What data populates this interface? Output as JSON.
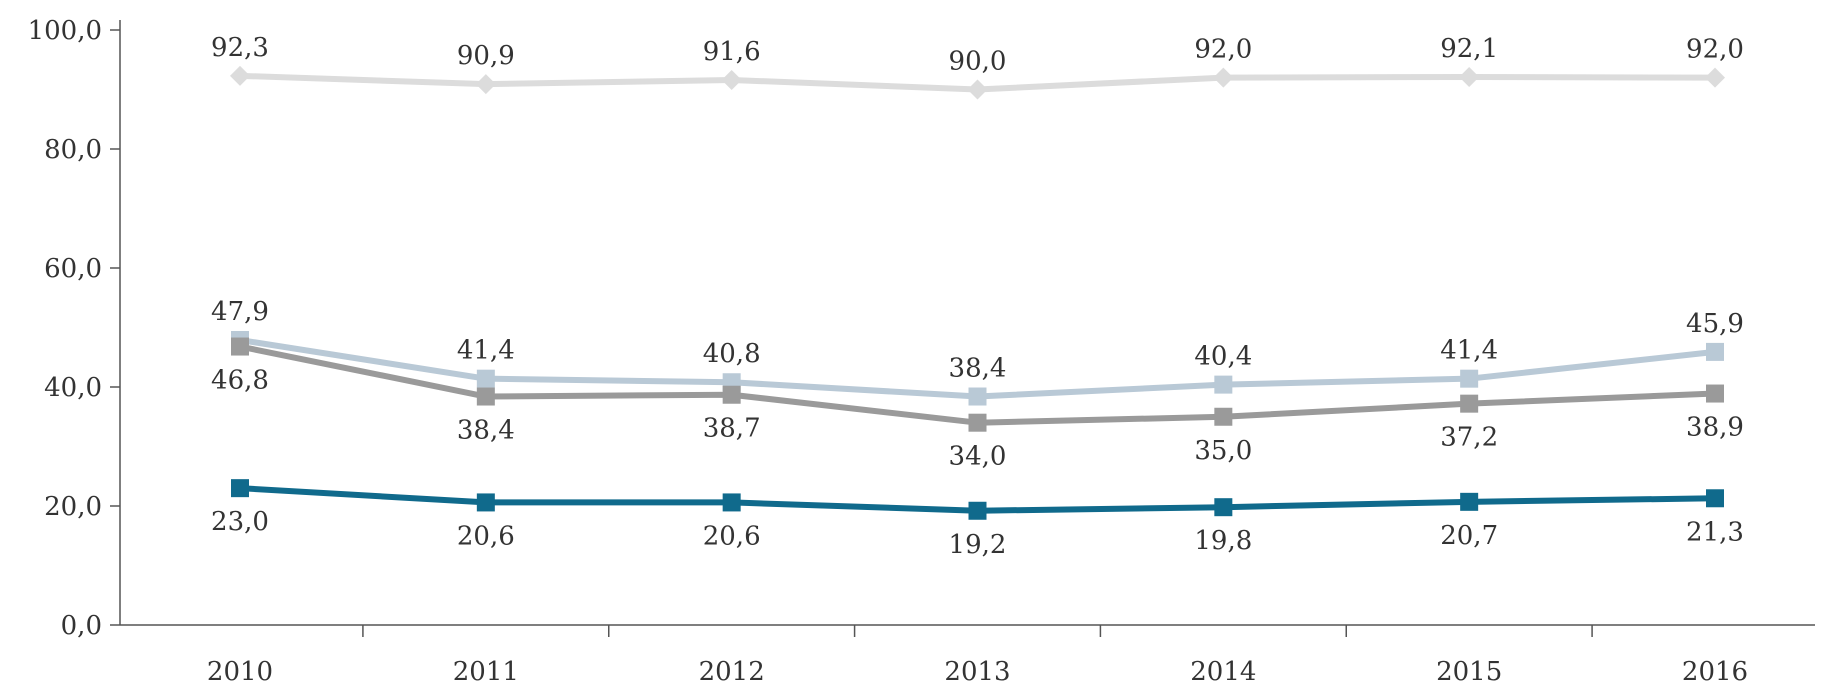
{
  "chart_data": {
    "type": "line",
    "title": "",
    "xlabel": "",
    "ylabel": "",
    "categories": [
      "2010",
      "2011",
      "2012",
      "2013",
      "2014",
      "2015",
      "2016"
    ],
    "ylim": [
      0,
      100
    ],
    "yticks": [
      0,
      20,
      40,
      60,
      80,
      100
    ],
    "ytick_labels": [
      "0,0",
      "20,0",
      "40,0",
      "60,0",
      "80,0",
      "100,0"
    ],
    "legend": "none",
    "grid": false,
    "series": [
      {
        "values": [
          92.3,
          90.9,
          91.6,
          90.0,
          92.0,
          92.1,
          92.0
        ],
        "labels": [
          "92,3",
          "90,9",
          "91,6",
          "90,0",
          "92,0",
          "92,1",
          "92,0"
        ],
        "label_position": "above",
        "color": "#dcdcdc",
        "marker": "diamond"
      },
      {
        "values": [
          47.9,
          41.4,
          40.8,
          38.4,
          40.4,
          41.4,
          45.9
        ],
        "labels": [
          "47,9",
          "41,4",
          "40,8",
          "38,4",
          "40,4",
          "41,4",
          "45,9"
        ],
        "label_position": "above",
        "color": "#b9c9d6",
        "marker": "square"
      },
      {
        "values": [
          46.8,
          38.4,
          38.7,
          34.0,
          35.0,
          37.2,
          38.9
        ],
        "labels": [
          "46,8",
          "38,4",
          "38,7",
          "34,0",
          "35,0",
          "37,2",
          "38,9"
        ],
        "label_position": "below",
        "color": "#9a9a9a",
        "marker": "square"
      },
      {
        "values": [
          23.0,
          20.6,
          20.6,
          19.2,
          19.8,
          20.7,
          21.3
        ],
        "labels": [
          "23,0",
          "20,6",
          "20,6",
          "19,2",
          "19,8",
          "20,7",
          "21,3"
        ],
        "label_position": "below",
        "color": "#106a8c",
        "marker": "square"
      }
    ]
  }
}
